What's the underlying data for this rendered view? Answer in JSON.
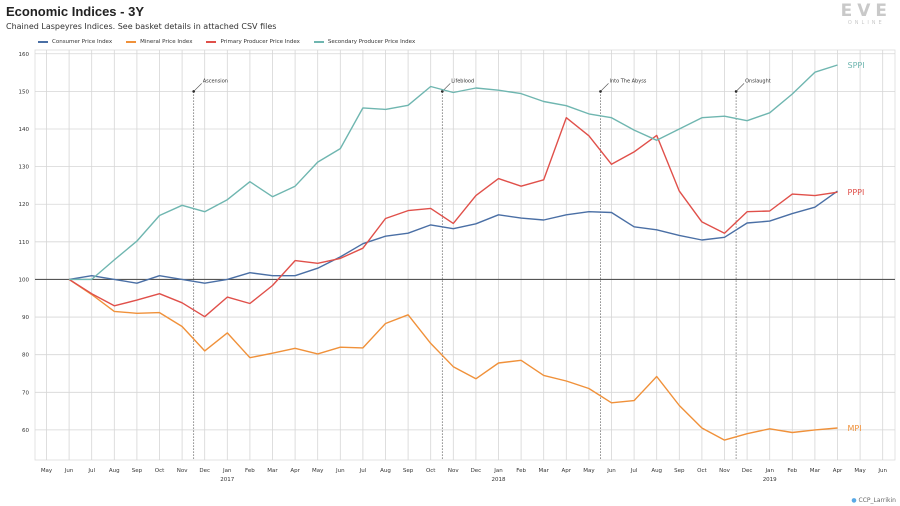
{
  "header": {
    "title": "Economic Indices - 3Y",
    "subtitle": "Chained Laspeyres Indices. See basket details in attached CSV files"
  },
  "logo": {
    "big": "EVE",
    "small": "ONLINE"
  },
  "credit": "CCP_Larrikin",
  "chart_data": {
    "type": "line",
    "categories": [
      "May",
      "Jun",
      "Jul",
      "Aug",
      "Sep",
      "Oct",
      "Nov",
      "Dec",
      "Jan",
      "Feb",
      "Mar",
      "Apr",
      "May",
      "Jun",
      "Jul",
      "Aug",
      "Sep",
      "Oct",
      "Nov",
      "Dec",
      "Jan",
      "Feb",
      "Mar",
      "Apr",
      "May",
      "Jun",
      "Jul",
      "Aug",
      "Sep",
      "Oct",
      "Nov",
      "Dec",
      "Jan",
      "Feb",
      "Mar",
      "Apr",
      "May",
      "Jun"
    ],
    "years": [
      {
        "label": "2017",
        "index": 8
      },
      {
        "label": "2018",
        "index": 20
      },
      {
        "label": "2019",
        "index": 32
      }
    ],
    "ylim": [
      52,
      161
    ],
    "yticks": [
      60,
      70,
      80,
      90,
      100,
      110,
      120,
      130,
      140,
      150,
      160
    ],
    "baseline": 100,
    "grid": true,
    "legend_position": "top-left",
    "series": [
      {
        "name": "Consumer Price Index",
        "color": "#4a6fa5",
        "end_label": "",
        "values": [
          null,
          100,
          101,
          100,
          99,
          101,
          100,
          99,
          100,
          101.8,
          101,
          101,
          103,
          106,
          109.5,
          111.5,
          112.3,
          114.5,
          113.5,
          114.8,
          117.2,
          116.3,
          115.8,
          117.2,
          118,
          117.8,
          114,
          113.2,
          111.7,
          110.5,
          111.2,
          115,
          115.5,
          117.5,
          119.2,
          123.5,
          null,
          null
        ]
      },
      {
        "name": "Mineral Price Index",
        "color": "#f0913a",
        "end_label": "MPI",
        "values": [
          null,
          100,
          96,
          91.5,
          91,
          91.2,
          87.5,
          81,
          85.8,
          79.2,
          80.4,
          81.7,
          80.2,
          82,
          81.8,
          88.3,
          90.6,
          83,
          76.8,
          73.6,
          77.8,
          78.5,
          74.5,
          73,
          71,
          67.2,
          67.8,
          74.2,
          66.5,
          60.5,
          57.3,
          59,
          60.3,
          59.3,
          60,
          60.5,
          null,
          null
        ]
      },
      {
        "name": "Primary Producer Price Index",
        "color": "#e0504a",
        "end_label": "PPPI",
        "values": [
          null,
          100,
          96.2,
          93,
          94.5,
          96.2,
          93.8,
          90.1,
          95.3,
          93.6,
          98.4,
          105,
          104.3,
          105.6,
          108.3,
          116.2,
          118.3,
          118.9,
          114.9,
          122.3,
          126.8,
          124.8,
          126.5,
          143,
          138.2,
          130.6,
          133.9,
          138.3,
          123.5,
          115.3,
          112.3,
          118,
          118.2,
          122.7,
          122.3,
          123.2,
          null,
          null
        ]
      },
      {
        "name": "Secondary Producer Price Index",
        "color": "#6fb6b0",
        "end_label": "SPPI",
        "values": [
          null,
          100,
          100,
          105.2,
          110.2,
          117,
          119.7,
          118,
          121.2,
          126,
          122,
          124.8,
          131.2,
          134.8,
          145.6,
          145.2,
          146.3,
          151.3,
          149.7,
          150.9,
          150.3,
          149.4,
          147.3,
          146.2,
          144,
          143,
          139.7,
          137,
          140,
          143,
          143.4,
          142.2,
          144.3,
          149.3,
          155.1,
          157,
          null,
          null
        ]
      }
    ],
    "annotations": [
      {
        "label": "Ascension",
        "index": 7,
        "value": 150
      },
      {
        "label": "Lifeblood",
        "index": 18,
        "value": 150
      },
      {
        "label": "Into The Abyss",
        "index": 25,
        "value": 150
      },
      {
        "label": "Onslaught",
        "index": 31,
        "value": 150
      }
    ]
  }
}
